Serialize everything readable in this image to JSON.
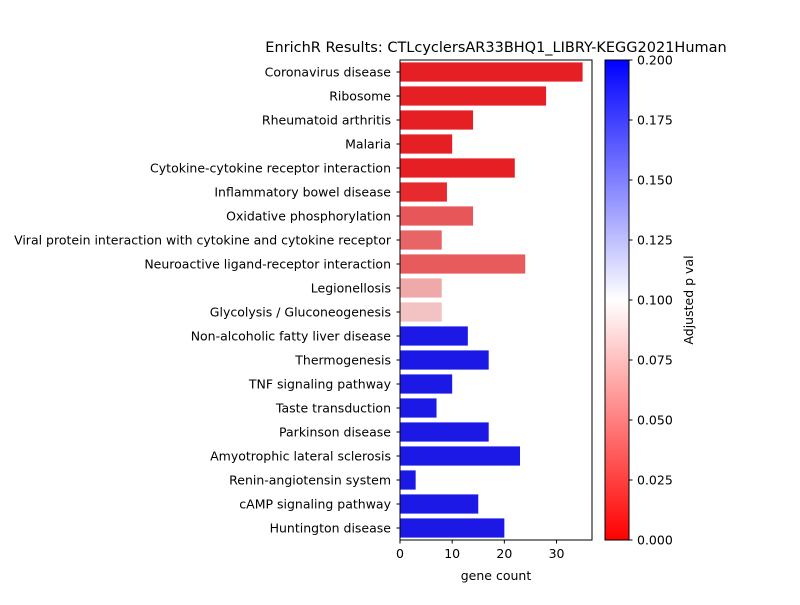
{
  "chart_data": {
    "type": "bar",
    "orientation": "horizontal",
    "title": "EnrichR Results: CTLcyclersAR33BHQ1_LIBRY-KEGG2021Human",
    "xlabel": "gene count",
    "ylabel": "",
    "xlim": [
      0,
      36.8
    ],
    "xticks": [
      0,
      10,
      20,
      30
    ],
    "categories": [
      "Coronavirus disease",
      "Ribosome",
      "Rheumatoid arthritis",
      "Malaria",
      "Cytokine-cytokine receptor interaction",
      "Inflammatory bowel disease",
      "Oxidative phosphorylation",
      "Viral protein interaction with cytokine and cytokine receptor",
      "Neuroactive ligand-receptor interaction",
      "Legionellosis",
      "Glycolysis / Gluconeogenesis",
      "Non-alcoholic fatty liver disease",
      "Thermogenesis",
      "TNF signaling pathway",
      "Taste transduction",
      "Parkinson disease",
      "Amyotrophic lateral sclerosis",
      "Renin-angiotensin system",
      "cAMP signaling pathway",
      "Huntington disease"
    ],
    "values": [
      35,
      28,
      14,
      10,
      22,
      9,
      14,
      8,
      24,
      8,
      8,
      13,
      17,
      10,
      7,
      17,
      23,
      3,
      15,
      20
    ],
    "colors": [
      "#e51f23",
      "#e51f23",
      "#e51f23",
      "#e51f23",
      "#e51f23",
      "#e62a2e",
      "#e75658",
      "#e76567",
      "#e75b5d",
      "#f0a9a9",
      "#f3c2c2",
      "#1c19e6",
      "#1c19e6",
      "#1c19e6",
      "#1c19e6",
      "#1c19e6",
      "#1c19e6",
      "#1c19e6",
      "#1c19e6",
      "#1c19e6"
    ],
    "colorbar": {
      "label": "Adjusted p val",
      "range": [
        0,
        0.2
      ],
      "ticks": [
        "0.000",
        "0.025",
        "0.050",
        "0.075",
        "0.100",
        "0.125",
        "0.150",
        "0.175",
        "0.200"
      ],
      "colormap": [
        "#ff0000",
        "#ffffff",
        "#0000ff"
      ]
    },
    "grid": false,
    "legend": "none"
  }
}
